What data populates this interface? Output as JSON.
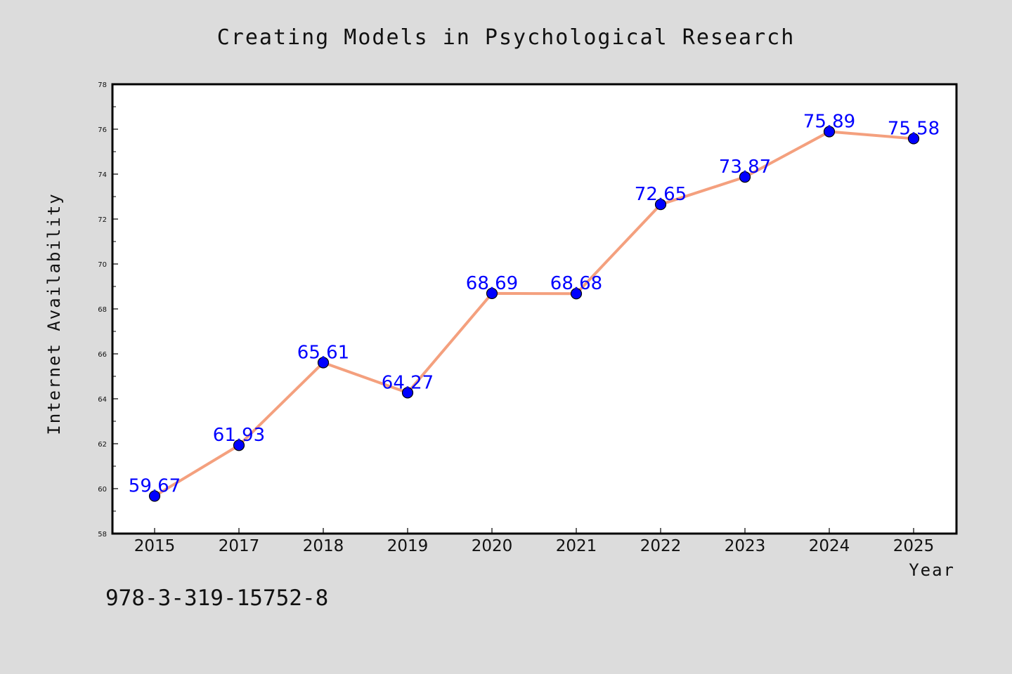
{
  "chart_data": {
    "type": "line",
    "title": "Creating Models in Psychological Research",
    "xlabel": "Year",
    "ylabel": "Internet Availability",
    "categories": [
      "2015",
      "2017",
      "2018",
      "2019",
      "2020",
      "2021",
      "2022",
      "2023",
      "2024",
      "2025"
    ],
    "series": [
      {
        "values": [
          59.67,
          61.93,
          65.61,
          64.27,
          68.69,
          68.68,
          72.65,
          73.87,
          75.89,
          75.58
        ]
      }
    ],
    "data_labels": [
      "59.67",
      "61.93",
      "65.61",
      "64.27",
      "68.69",
      "68.68",
      "72.65",
      "73.87",
      "75.89",
      "75.58"
    ],
    "ylim": [
      58,
      78
    ],
    "yticks": [
      58,
      60,
      62,
      64,
      66,
      68,
      70,
      72,
      74,
      76,
      78
    ],
    "grid": false,
    "colors": {
      "line": "#f4a07e",
      "marker": "#0000ff",
      "data_label": "#0000ff",
      "background": "#dcdcdc",
      "plot_background": "#ffffff"
    }
  },
  "footer": {
    "id_text": "978-3-319-15752-8"
  }
}
